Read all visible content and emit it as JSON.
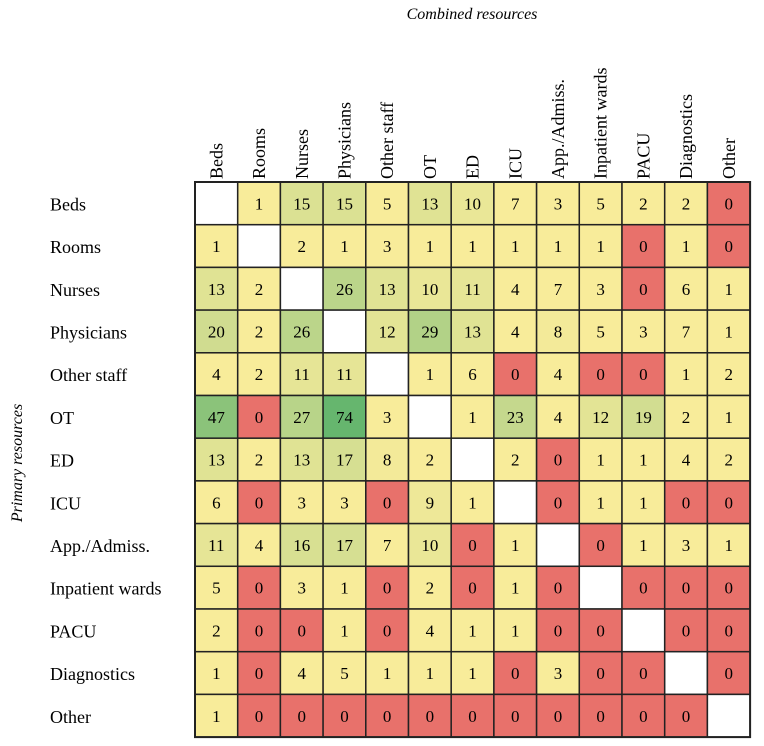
{
  "chart_data": {
    "type": "heatmap",
    "title": "Combined resources",
    "xlabel": "Combined resources",
    "ylabel": "Primary resources",
    "columns": [
      "Beds",
      "Rooms",
      "Nurses",
      "Physicians",
      "Other staff",
      "OT",
      "ED",
      "ICU",
      "App./Admiss.",
      "Inpatient wards",
      "PACU",
      "Diagnostics",
      "Other"
    ],
    "rows": [
      "Beds",
      "Rooms",
      "Nurses",
      "Physicians",
      "Other staff",
      "OT",
      "ED",
      "ICU",
      "App./Admiss.",
      "Inpatient wards",
      "PACU",
      "Diagnostics",
      "Other"
    ],
    "values": [
      [
        null,
        1,
        15,
        15,
        5,
        13,
        10,
        7,
        3,
        5,
        2,
        2,
        0
      ],
      [
        1,
        null,
        2,
        1,
        3,
        1,
        1,
        1,
        1,
        1,
        0,
        1,
        0
      ],
      [
        13,
        2,
        null,
        26,
        13,
        10,
        11,
        4,
        7,
        3,
        0,
        6,
        1
      ],
      [
        20,
        2,
        26,
        null,
        12,
        29,
        13,
        4,
        8,
        5,
        3,
        7,
        1
      ],
      [
        4,
        2,
        11,
        11,
        null,
        1,
        6,
        0,
        4,
        0,
        0,
        1,
        2
      ],
      [
        47,
        0,
        27,
        74,
        3,
        null,
        1,
        23,
        4,
        12,
        19,
        2,
        1
      ],
      [
        13,
        2,
        13,
        17,
        8,
        2,
        null,
        2,
        0,
        1,
        1,
        4,
        2
      ],
      [
        6,
        0,
        3,
        3,
        0,
        9,
        1,
        null,
        0,
        1,
        1,
        0,
        0
      ],
      [
        11,
        4,
        16,
        17,
        7,
        10,
        0,
        1,
        null,
        0,
        1,
        3,
        1
      ],
      [
        5,
        0,
        3,
        1,
        0,
        2,
        0,
        1,
        0,
        null,
        0,
        0,
        0
      ],
      [
        2,
        0,
        0,
        1,
        0,
        4,
        1,
        1,
        0,
        0,
        null,
        0,
        0
      ],
      [
        1,
        0,
        4,
        5,
        1,
        1,
        1,
        0,
        3,
        0,
        0,
        null,
        0
      ],
      [
        1,
        0,
        0,
        0,
        0,
        0,
        0,
        0,
        0,
        0,
        0,
        0,
        null
      ]
    ],
    "colors": {
      "zero": "#e8716b",
      "low": "#f8ec9a",
      "mid": "#cfdc90",
      "high": "#66b66e",
      "diagonal": "#ffffff",
      "border": "#222222"
    }
  }
}
